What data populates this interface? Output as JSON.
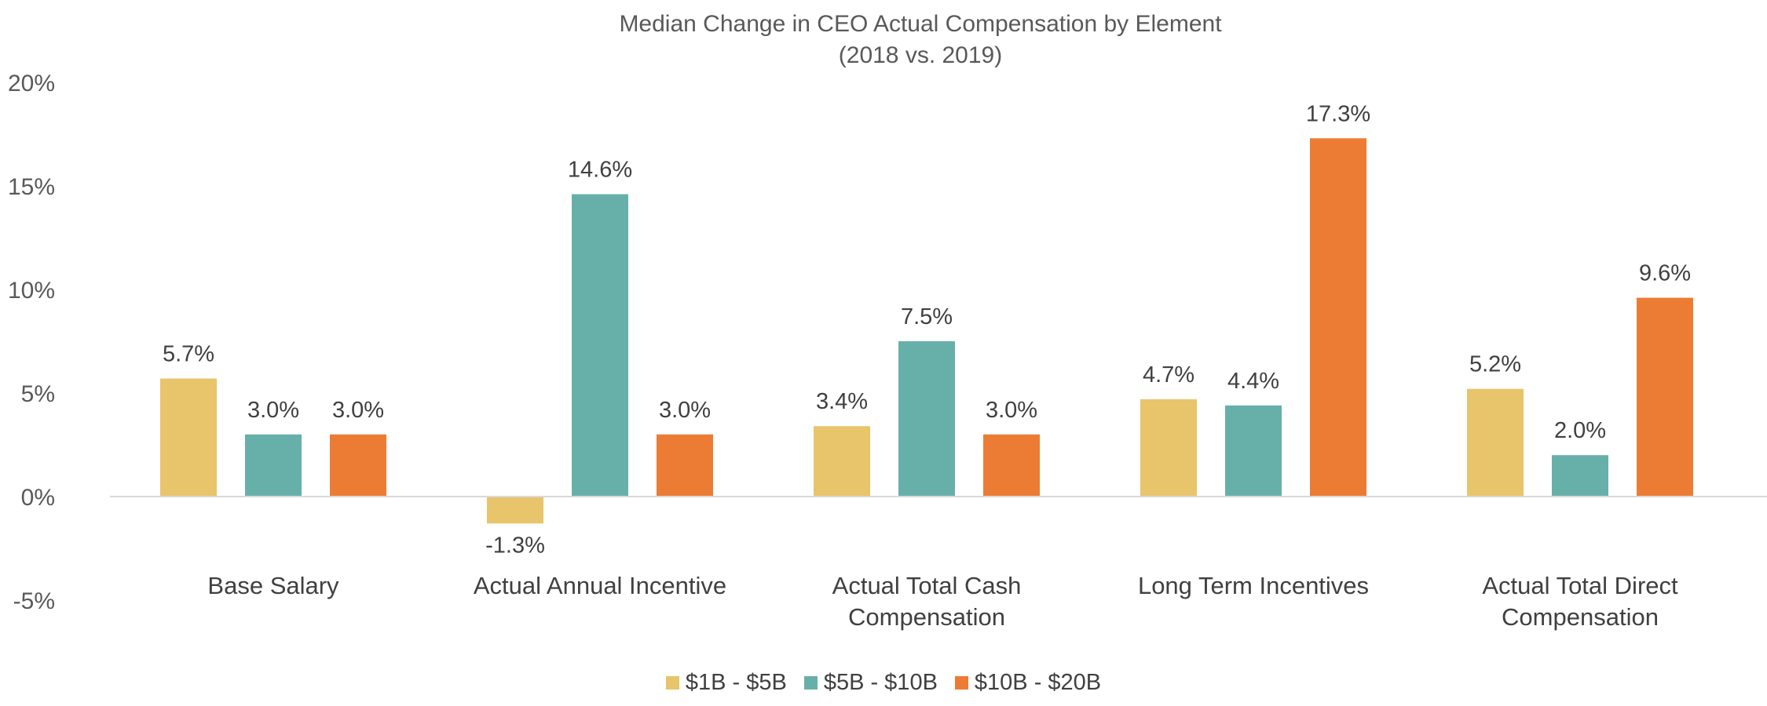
{
  "chart_data": {
    "type": "bar",
    "title": "Median Change in CEO Actual Compensation by Element",
    "subtitle": "(2018 vs. 2019)",
    "categories": [
      [
        "Base Salary"
      ],
      [
        "Actual Annual Incentive"
      ],
      [
        "Actual Total Cash",
        "Compensation"
      ],
      [
        "Long Term Incentives"
      ],
      [
        "Actual Total Direct",
        "Compensation"
      ]
    ],
    "series": [
      {
        "name": "$1B - $5B",
        "color": "#E8C46B",
        "values": [
          5.7,
          -1.3,
          3.4,
          4.7,
          5.2
        ],
        "labels": [
          "5.7%",
          "-1.3%",
          "3.4%",
          "4.7%",
          "5.2%"
        ]
      },
      {
        "name": "$5B - $10B",
        "color": "#67B0AA",
        "values": [
          3.0,
          14.6,
          7.5,
          4.4,
          2.0
        ],
        "labels": [
          "3.0%",
          "14.6%",
          "7.5%",
          "4.4%",
          "2.0%"
        ]
      },
      {
        "name": "$10B - $20B",
        "color": "#EC7C34",
        "values": [
          3.0,
          3.0,
          3.0,
          17.3,
          9.6
        ],
        "labels": [
          "3.0%",
          "3.0%",
          "3.0%",
          "17.3%",
          "9.6%"
        ]
      }
    ],
    "yticks": [
      "20%",
      "15%",
      "10%",
      "5%",
      "0%",
      "-5%"
    ],
    "ylim": [
      -5,
      20
    ],
    "xlabel": "",
    "ylabel": "",
    "grid": false,
    "legend_position": "bottom"
  }
}
